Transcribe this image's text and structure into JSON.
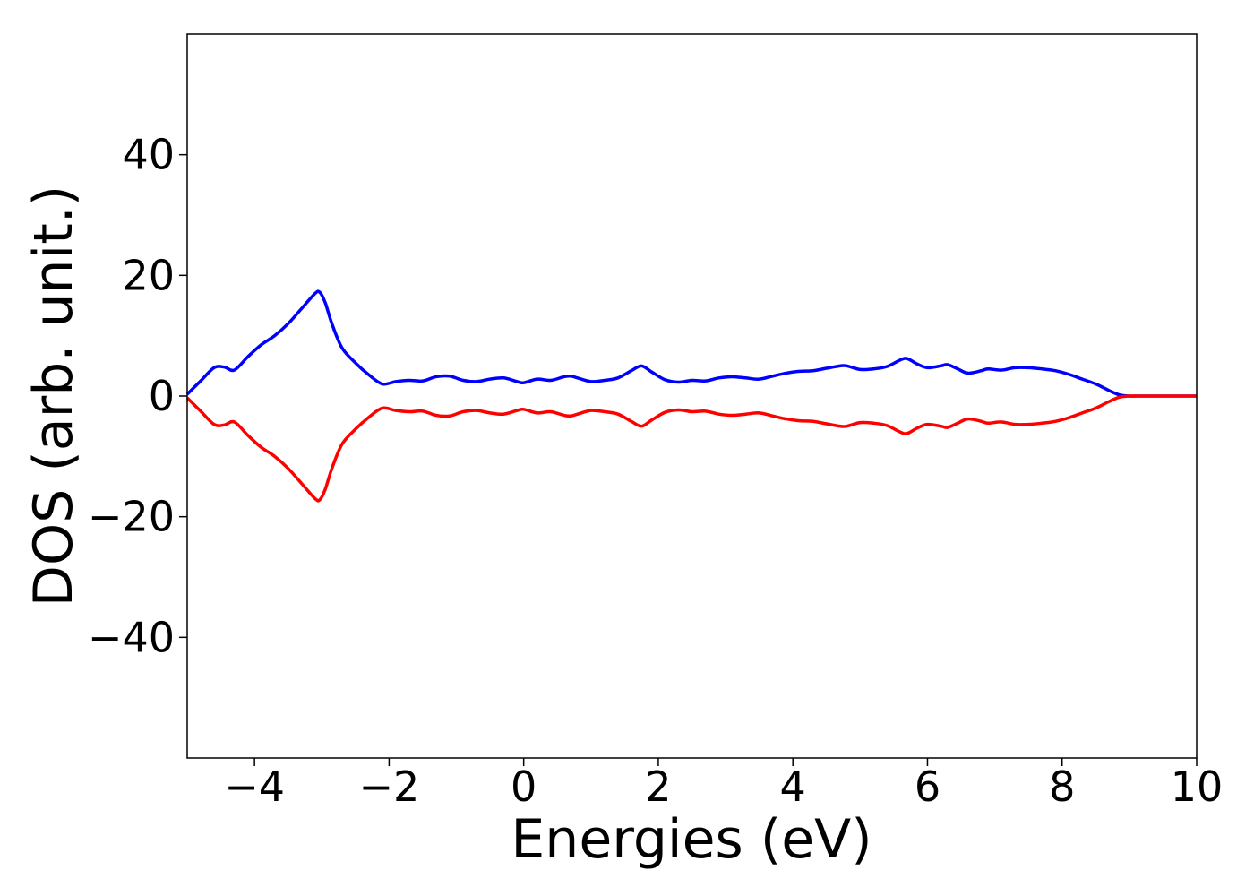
{
  "chart_data": {
    "type": "line",
    "title": "",
    "xlabel": "Energies (eV)",
    "ylabel": "DOS (arb. unit.)",
    "xlim": [
      -5,
      10
    ],
    "ylim": [
      -60,
      60
    ],
    "xticks": [
      -4,
      -2,
      0,
      2,
      4,
      6,
      8,
      10
    ],
    "xtick_labels": [
      "−4",
      "−2",
      "0",
      "2",
      "4",
      "6",
      "8",
      "10"
    ],
    "yticks": [
      40,
      20,
      0,
      -20,
      -40
    ],
    "ytick_labels": [
      "40",
      "20",
      "0",
      "−20",
      "−40"
    ],
    "grid": false,
    "legend": "none",
    "series": [
      {
        "color": "#0000ff",
        "x": [
          -5.0,
          -4.8,
          -4.6,
          -4.45,
          -4.3,
          -4.1,
          -3.9,
          -3.7,
          -3.5,
          -3.3,
          -3.1,
          -3.03,
          -2.95,
          -2.85,
          -2.7,
          -2.5,
          -2.3,
          -2.1,
          -1.9,
          -1.7,
          -1.5,
          -1.3,
          -1.1,
          -0.9,
          -0.7,
          -0.5,
          -0.3,
          -0.1,
          0.0,
          0.2,
          0.4,
          0.6,
          0.7,
          0.8,
          1.0,
          1.2,
          1.4,
          1.6,
          1.75,
          1.9,
          2.1,
          2.3,
          2.5,
          2.7,
          2.9,
          3.1,
          3.3,
          3.5,
          3.7,
          3.9,
          4.1,
          4.3,
          4.5,
          4.7,
          4.8,
          5.0,
          5.2,
          5.4,
          5.6,
          5.7,
          5.85,
          6.0,
          6.2,
          6.3,
          6.45,
          6.6,
          6.8,
          6.9,
          7.1,
          7.3,
          7.5,
          7.7,
          7.9,
          8.1,
          8.3,
          8.5,
          8.7,
          8.85,
          9.0,
          9.2,
          9.5,
          10.0
        ],
        "y": [
          0.3,
          2.5,
          4.7,
          4.8,
          4.3,
          6.5,
          8.5,
          10.0,
          12.0,
          14.5,
          17.0,
          17.2,
          15.5,
          12.0,
          8.0,
          5.5,
          3.5,
          2.0,
          2.4,
          2.6,
          2.5,
          3.2,
          3.3,
          2.6,
          2.4,
          2.8,
          3.0,
          2.4,
          2.2,
          2.8,
          2.6,
          3.2,
          3.3,
          3.0,
          2.4,
          2.6,
          3.0,
          4.2,
          5.0,
          4.0,
          2.7,
          2.3,
          2.6,
          2.5,
          3.0,
          3.2,
          3.0,
          2.8,
          3.3,
          3.8,
          4.1,
          4.2,
          4.6,
          5.0,
          5.0,
          4.4,
          4.5,
          4.9,
          6.0,
          6.2,
          5.3,
          4.7,
          5.0,
          5.2,
          4.5,
          3.8,
          4.2,
          4.5,
          4.3,
          4.7,
          4.7,
          4.5,
          4.2,
          3.6,
          2.8,
          2.0,
          0.9,
          0.2,
          0.0,
          0.0,
          0.0,
          0.0
        ]
      },
      {
        "color": "#ff0000",
        "x": [
          -5.0,
          -4.8,
          -4.6,
          -4.45,
          -4.3,
          -4.1,
          -3.9,
          -3.7,
          -3.5,
          -3.3,
          -3.1,
          -3.03,
          -2.95,
          -2.85,
          -2.7,
          -2.5,
          -2.3,
          -2.1,
          -1.9,
          -1.7,
          -1.5,
          -1.3,
          -1.1,
          -0.9,
          -0.7,
          -0.5,
          -0.3,
          -0.1,
          0.0,
          0.2,
          0.4,
          0.6,
          0.7,
          0.8,
          1.0,
          1.2,
          1.4,
          1.6,
          1.75,
          1.9,
          2.1,
          2.3,
          2.5,
          2.7,
          2.9,
          3.1,
          3.3,
          3.5,
          3.7,
          3.9,
          4.1,
          4.3,
          4.5,
          4.7,
          4.8,
          5.0,
          5.2,
          5.4,
          5.6,
          5.7,
          5.85,
          6.0,
          6.2,
          6.3,
          6.45,
          6.6,
          6.8,
          6.9,
          7.1,
          7.3,
          7.5,
          7.7,
          7.9,
          8.1,
          8.3,
          8.5,
          8.7,
          8.85,
          9.0,
          9.2,
          9.5,
          10.0
        ],
        "y": [
          -0.3,
          -2.5,
          -4.7,
          -4.8,
          -4.3,
          -6.5,
          -8.5,
          -10.0,
          -12.0,
          -14.5,
          -17.0,
          -17.2,
          -15.5,
          -12.0,
          -8.0,
          -5.5,
          -3.5,
          -2.0,
          -2.4,
          -2.6,
          -2.5,
          -3.2,
          -3.3,
          -2.6,
          -2.4,
          -2.8,
          -3.0,
          -2.4,
          -2.2,
          -2.8,
          -2.6,
          -3.2,
          -3.3,
          -3.0,
          -2.4,
          -2.6,
          -3.0,
          -4.2,
          -5.0,
          -4.0,
          -2.7,
          -2.3,
          -2.6,
          -2.5,
          -3.0,
          -3.2,
          -3.0,
          -2.8,
          -3.3,
          -3.8,
          -4.1,
          -4.2,
          -4.6,
          -5.0,
          -5.0,
          -4.4,
          -4.5,
          -4.9,
          -6.0,
          -6.2,
          -5.3,
          -4.7,
          -5.0,
          -5.2,
          -4.5,
          -3.8,
          -4.2,
          -4.5,
          -4.3,
          -4.7,
          -4.7,
          -4.5,
          -4.2,
          -3.6,
          -2.8,
          -2.0,
          -0.9,
          -0.2,
          0.0,
          0.0,
          0.0,
          0.0
        ]
      }
    ]
  }
}
